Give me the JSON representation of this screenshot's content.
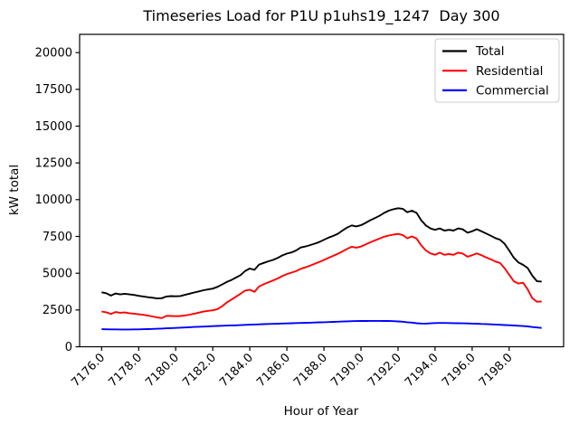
{
  "chart_data": {
    "type": "line",
    "title": "Timeseries Load for P1U p1uhs19_1247  Day 300",
    "xlabel": "Hour of Year",
    "ylabel": "kW total",
    "grid": false,
    "xlim": [
      7174.8125,
      7200.9375
    ],
    "ylim": [
      0,
      21240
    ],
    "xticks": {
      "values": [
        7176,
        7178,
        7180,
        7182,
        7184,
        7186,
        7188,
        7190,
        7192,
        7194,
        7196,
        7198
      ],
      "labels": [
        "7176.0",
        "7178.0",
        "7180.0",
        "7182.0",
        "7184.0",
        "7186.0",
        "7188.0",
        "7190.0",
        "7192.0",
        "7194.0",
        "7196.0",
        "7198.0"
      ]
    },
    "yticks": {
      "values": [
        0,
        2500,
        5000,
        7500,
        10000,
        12500,
        15000,
        17500,
        20000
      ],
      "labels": [
        "0",
        "2500",
        "5000",
        "7500",
        "10000",
        "12500",
        "15000",
        "17500",
        "20000"
      ]
    },
    "legend": {
      "position": "upper right",
      "entries": [
        "Total",
        "Residential",
        "Commercial"
      ]
    },
    "x_start": 7176.0,
    "x_step": 0.25,
    "x": [
      7176.0,
      7176.25,
      7176.5,
      7176.75,
      7177.0,
      7177.25,
      7177.5,
      7177.75,
      7178.0,
      7178.25,
      7178.5,
      7178.75,
      7179.0,
      7179.25,
      7179.5,
      7179.75,
      7180.0,
      7180.25,
      7180.5,
      7180.75,
      7181.0,
      7181.25,
      7181.5,
      7181.75,
      7182.0,
      7182.25,
      7182.5,
      7182.75,
      7183.0,
      7183.25,
      7183.5,
      7183.75,
      7184.0,
      7184.25,
      7184.5,
      7184.75,
      7185.0,
      7185.25,
      7185.5,
      7185.75,
      7186.0,
      7186.25,
      7186.5,
      7186.75,
      7187.0,
      7187.25,
      7187.5,
      7187.75,
      7188.0,
      7188.25,
      7188.5,
      7188.75,
      7189.0,
      7189.25,
      7189.5,
      7189.75,
      7190.0,
      7190.25,
      7190.5,
      7190.75,
      7191.0,
      7191.25,
      7191.5,
      7191.75,
      7192.0,
      7192.25,
      7192.5,
      7192.75,
      7193.0,
      7193.25,
      7193.5,
      7193.75,
      7194.0,
      7194.25,
      7194.5,
      7194.75,
      7195.0,
      7195.25,
      7195.5,
      7195.75,
      7196.0,
      7196.25,
      7196.5,
      7196.75,
      7197.0,
      7197.25,
      7197.5,
      7197.75,
      7198.0,
      7198.25,
      7198.5,
      7198.75,
      7199.0,
      7199.25,
      7199.5,
      7199.75
    ],
    "series": [
      {
        "name": "Total",
        "color": "#000000",
        "values": [
          3700,
          3640,
          3480,
          3620,
          3560,
          3600,
          3560,
          3520,
          3460,
          3420,
          3370,
          3330,
          3280,
          3300,
          3420,
          3440,
          3430,
          3450,
          3530,
          3610,
          3690,
          3760,
          3840,
          3900,
          3950,
          4070,
          4230,
          4400,
          4540,
          4700,
          4870,
          5150,
          5320,
          5230,
          5590,
          5700,
          5810,
          5900,
          6040,
          6210,
          6330,
          6410,
          6550,
          6750,
          6820,
          6910,
          7010,
          7120,
          7270,
          7420,
          7540,
          7680,
          7900,
          8100,
          8250,
          8180,
          8260,
          8420,
          8600,
          8750,
          8900,
          9100,
          9250,
          9350,
          9420,
          9380,
          9150,
          9250,
          9100,
          8600,
          8250,
          8050,
          7950,
          8050,
          7900,
          7950,
          7900,
          8050,
          7980,
          7750,
          7850,
          7990,
          7850,
          7700,
          7550,
          7390,
          7280,
          7000,
          6550,
          6050,
          5730,
          5570,
          5350,
          4830,
          4450,
          4430
        ]
      },
      {
        "name": "Residential",
        "color": "#ff0000",
        "values": [
          2400,
          2340,
          2230,
          2360,
          2310,
          2330,
          2280,
          2250,
          2210,
          2170,
          2120,
          2060,
          1990,
          1950,
          2100,
          2090,
          2080,
          2090,
          2130,
          2180,
          2250,
          2320,
          2390,
          2440,
          2480,
          2560,
          2750,
          3000,
          3200,
          3400,
          3600,
          3820,
          3870,
          3730,
          4100,
          4250,
          4380,
          4500,
          4640,
          4800,
          4940,
          5040,
          5140,
          5300,
          5400,
          5510,
          5640,
          5760,
          5900,
          6050,
          6180,
          6320,
          6480,
          6650,
          6800,
          6740,
          6810,
          6950,
          7100,
          7230,
          7350,
          7480,
          7560,
          7620,
          7670,
          7600,
          7380,
          7500,
          7350,
          6900,
          6550,
          6350,
          6250,
          6400,
          6250,
          6300,
          6250,
          6400,
          6330,
          6120,
          6220,
          6350,
          6220,
          6080,
          5950,
          5800,
          5700,
          5350,
          4900,
          4450,
          4300,
          4350,
          3900,
          3300,
          3060,
          3080
        ]
      },
      {
        "name": "Commercial",
        "color": "#0000ff",
        "values": [
          1190,
          1185,
          1180,
          1178,
          1176,
          1176,
          1175,
          1178,
          1182,
          1190,
          1200,
          1212,
          1225,
          1238,
          1252,
          1266,
          1280,
          1296,
          1312,
          1328,
          1344,
          1358,
          1372,
          1386,
          1400,
          1412,
          1424,
          1436,
          1448,
          1460,
          1472,
          1486,
          1500,
          1512,
          1524,
          1536,
          1548,
          1558,
          1568,
          1578,
          1588,
          1598,
          1608,
          1618,
          1628,
          1638,
          1648,
          1658,
          1668,
          1680,
          1692,
          1704,
          1716,
          1728,
          1738,
          1744,
          1750,
          1755,
          1758,
          1760,
          1758,
          1755,
          1750,
          1738,
          1720,
          1700,
          1665,
          1640,
          1600,
          1582,
          1575,
          1595,
          1612,
          1618,
          1615,
          1610,
          1605,
          1600,
          1592,
          1584,
          1575,
          1565,
          1552,
          1540,
          1525,
          1510,
          1494,
          1478,
          1462,
          1444,
          1425,
          1405,
          1385,
          1340,
          1310,
          1280
        ]
      }
    ]
  }
}
